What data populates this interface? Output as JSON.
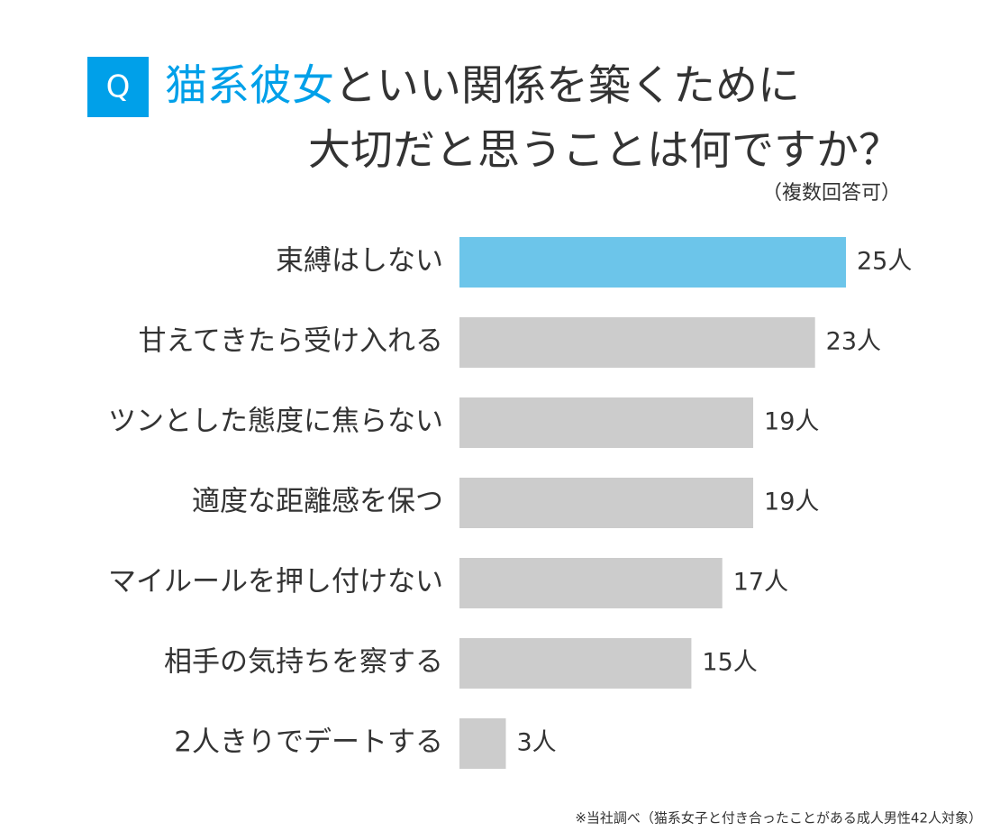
{
  "chart_data": {
    "type": "hbar",
    "badge": "Q",
    "title": [
      "猫系彼女",
      "といい関係を築くために",
      "大切だと思うことは何ですか？"
    ],
    "title_color": "#00a0e9",
    "subtitle": "（複数回答可）",
    "categories": [
      "束縛はしない",
      "甘えてきたら受け入れる",
      "ツンとした態度に焦らない",
      "適度な距離感を保つ",
      "マイルールを押し付けない",
      "相手の気持ちを察する",
      "2人きりでデートする"
    ],
    "values": [
      25,
      23,
      19,
      19,
      17,
      15,
      3
    ],
    "value_labels": [
      "25人",
      "23人",
      "19人",
      "19人",
      "17人",
      "15人",
      "3人"
    ],
    "colors": [
      "#6cc5ea",
      "#cccccc",
      "#cccccc",
      "#cccccc",
      "#cccccc",
      "#cccccc",
      "#cccccc"
    ],
    "footnote": "※当社調べ（猫系女子と付き合ったことがある成人男性42人対象）"
  }
}
